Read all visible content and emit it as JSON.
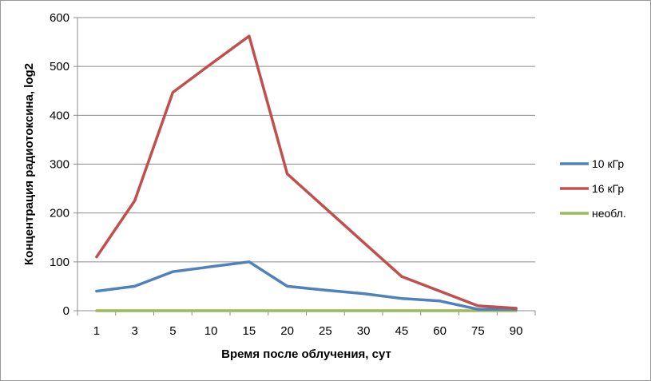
{
  "chart_data": {
    "type": "line",
    "categories": [
      "1",
      "3",
      "5",
      "10",
      "15",
      "20",
      "25",
      "30",
      "45",
      "60",
      "75",
      "90"
    ],
    "series": [
      {
        "name": "10 кГр",
        "color": "#4f81bd",
        "values": [
          40,
          50,
          80,
          90,
          100,
          50,
          42,
          35,
          25,
          20,
          3,
          3
        ]
      },
      {
        "name": "16 кГр",
        "color": "#c0504d",
        "values": [
          110,
          225,
          447,
          505,
          562,
          280,
          210,
          140,
          70,
          40,
          10,
          5
        ]
      },
      {
        "name": "необл.",
        "color": "#9bbb59",
        "values": [
          0,
          0,
          0,
          0,
          0,
          0,
          0,
          0,
          0,
          0,
          0,
          0
        ]
      }
    ],
    "xlabel": "Время после облучения, сут",
    "ylabel": "Концентрация радиотоксина, log2",
    "ylim": [
      0,
      600
    ],
    "yticks": [
      "0",
      "100",
      "200",
      "300",
      "400",
      "500",
      "600"
    ],
    "grid": true,
    "legend_position": "right"
  }
}
